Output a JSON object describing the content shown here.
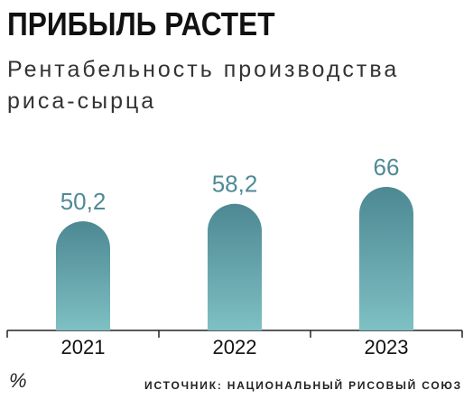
{
  "chart_data": {
    "type": "bar",
    "title": "ПРИБЫЛЬ РАСТЕТ",
    "subtitle": "Рентабельность производства риса-сырца",
    "categories": [
      "2021",
      "2022",
      "2023"
    ],
    "values": [
      50.2,
      58.2,
      66
    ],
    "value_labels": [
      "50,2",
      "58,2",
      "66"
    ],
    "color": "#5f9ea6",
    "unit": "%",
    "source": "ИСТОЧНИК: НАЦИОНАЛЬНЫЙ РИСОВЫЙ СОЮЗ"
  }
}
